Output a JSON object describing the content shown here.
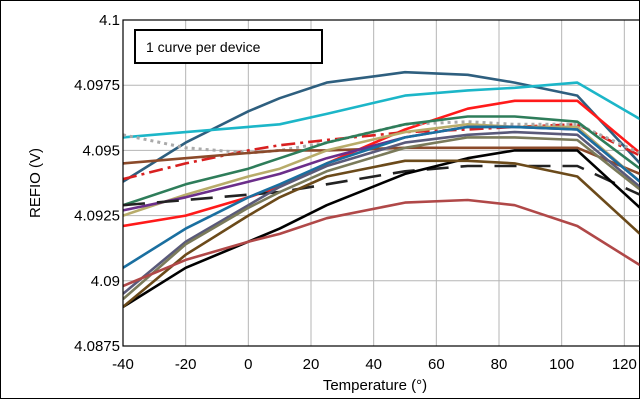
{
  "chart_data": {
    "type": "line",
    "title": "",
    "xlabel": "Temperature (°)",
    "ylabel": "REFIO (V)",
    "xlim": [
      -40,
      125
    ],
    "ylim": [
      4.0875,
      4.1
    ],
    "xticks": [
      -40,
      -20,
      0,
      20,
      40,
      60,
      80,
      100,
      120
    ],
    "yticks": [
      4.0875,
      4.09,
      4.0925,
      4.095,
      4.0975,
      4.1
    ],
    "ytick_labels": [
      "4.0875",
      "4.09",
      "4.0925",
      "4.095",
      "4.0975",
      "4.1"
    ],
    "grid": true,
    "legend": {
      "text": "1 curve per device",
      "placement": "top-left"
    },
    "series": [
      {
        "color": "#2e5f7f",
        "style": "solid",
        "x": [
          -40,
          -20,
          0,
          10,
          25,
          50,
          70,
          85,
          105,
          125
        ],
        "y": [
          4.0938,
          4.0953,
          4.0965,
          4.097,
          4.0976,
          4.098,
          4.0979,
          4.0976,
          4.0971,
          4.0945
        ]
      },
      {
        "color": "#1cb6c8",
        "style": "solid",
        "x": [
          -40,
          -20,
          0,
          10,
          25,
          50,
          70,
          85,
          105,
          125
        ],
        "y": [
          4.0955,
          4.0957,
          4.0959,
          4.096,
          4.0964,
          4.0971,
          4.0973,
          4.0974,
          4.0976,
          4.0962
        ]
      },
      {
        "color": "#ff1a1a",
        "style": "solid",
        "x": [
          -40,
          -20,
          0,
          10,
          25,
          50,
          70,
          85,
          105,
          125
        ],
        "y": [
          4.0921,
          4.0925,
          4.0932,
          4.0936,
          4.0945,
          4.0958,
          4.0966,
          4.0969,
          4.0969,
          4.0949
        ]
      },
      {
        "color": "#d82020",
        "style": "dashdot",
        "x": [
          -40,
          -20,
          0,
          10,
          25,
          50,
          70,
          85,
          105,
          125
        ],
        "y": [
          4.0939,
          4.0945,
          4.095,
          4.0952,
          4.0954,
          4.0957,
          4.0958,
          4.0959,
          4.096,
          4.0948
        ]
      },
      {
        "color": "#aaaaaa",
        "style": "dot",
        "x": [
          -40,
          -20,
          0,
          10,
          25,
          50,
          70,
          85,
          105,
          125
        ],
        "y": [
          4.0956,
          4.0951,
          4.0949,
          4.095,
          4.0953,
          4.096,
          4.0961,
          4.096,
          4.096,
          4.0949
        ]
      },
      {
        "color": "#8b4a2a",
        "style": "solid",
        "x": [
          -40,
          -20,
          0,
          10,
          25,
          50,
          70,
          85,
          105,
          125
        ],
        "y": [
          4.0945,
          4.0947,
          4.0949,
          4.095,
          4.095,
          4.0951,
          4.0951,
          4.0951,
          4.0951,
          4.0941
        ]
      },
      {
        "color": "#2e7d5a",
        "style": "solid",
        "x": [
          -40,
          -20,
          0,
          10,
          25,
          50,
          70,
          85,
          105,
          125
        ],
        "y": [
          4.0929,
          4.0937,
          4.0943,
          4.0947,
          4.0953,
          4.096,
          4.0963,
          4.0963,
          4.0961,
          4.0943
        ]
      },
      {
        "color": "#b8ac6a",
        "style": "solid",
        "x": [
          -40,
          -20,
          0,
          10,
          25,
          50,
          70,
          85,
          105,
          125
        ],
        "y": [
          4.0925,
          4.0933,
          4.094,
          4.0943,
          4.095,
          4.0957,
          4.096,
          4.0959,
          4.0959,
          4.0938
        ]
      },
      {
        "color": "#6b2e8a",
        "style": "solid",
        "x": [
          -40,
          -20,
          0,
          10,
          25,
          50,
          70,
          85,
          105,
          125
        ],
        "y": [
          4.0927,
          4.0932,
          4.0938,
          4.0941,
          4.0947,
          4.0955,
          4.0959,
          4.0959,
          4.0958,
          4.0938
        ]
      },
      {
        "color": "#222222",
        "style": "dash",
        "x": [
          -40,
          -20,
          0,
          10,
          25,
          50,
          70,
          85,
          105,
          125
        ],
        "y": [
          4.0929,
          4.0931,
          4.0933,
          4.0934,
          4.0937,
          4.0942,
          4.0944,
          4.0944,
          4.0944,
          4.0933
        ]
      },
      {
        "color": "#1a6fa0",
        "style": "solid",
        "x": [
          -40,
          -20,
          0,
          10,
          25,
          50,
          70,
          85,
          105,
          125
        ],
        "y": [
          4.0905,
          4.092,
          4.0932,
          4.0937,
          4.0945,
          4.0955,
          4.0959,
          4.0959,
          4.0958,
          4.0938
        ]
      },
      {
        "color": "#5a5a7a",
        "style": "solid",
        "x": [
          -40,
          -20,
          0,
          10,
          25,
          50,
          70,
          85,
          105,
          125
        ],
        "y": [
          4.0895,
          4.0915,
          4.0929,
          4.0936,
          4.0944,
          4.0953,
          4.0956,
          4.0957,
          4.0956,
          4.0936
        ]
      },
      {
        "color": "#7a7a5a",
        "style": "solid",
        "x": [
          -40,
          -20,
          0,
          10,
          25,
          50,
          70,
          85,
          105,
          125
        ],
        "y": [
          4.0893,
          4.0914,
          4.0928,
          4.0934,
          4.0942,
          4.0951,
          4.0955,
          4.0955,
          4.0954,
          4.0935
        ]
      },
      {
        "color": "#000000",
        "style": "solid",
        "x": [
          -40,
          -20,
          0,
          10,
          25,
          50,
          70,
          85,
          105,
          125
        ],
        "y": [
          4.089,
          4.0905,
          4.0915,
          4.092,
          4.0929,
          4.0941,
          4.0947,
          4.095,
          4.095,
          4.0928
        ]
      },
      {
        "color": "#6b4a1a",
        "style": "solid",
        "x": [
          -40,
          -20,
          0,
          10,
          25,
          50,
          70,
          85,
          105,
          125
        ],
        "y": [
          4.089,
          4.091,
          4.0925,
          4.0932,
          4.094,
          4.0946,
          4.0946,
          4.0945,
          4.094,
          4.0918
        ]
      },
      {
        "color": "#b04848",
        "style": "solid",
        "x": [
          -40,
          -20,
          0,
          10,
          25,
          50,
          70,
          85,
          105,
          125
        ],
        "y": [
          4.0898,
          4.0908,
          4.0915,
          4.0918,
          4.0924,
          4.093,
          4.0931,
          4.0929,
          4.0921,
          4.0906
        ]
      }
    ]
  }
}
